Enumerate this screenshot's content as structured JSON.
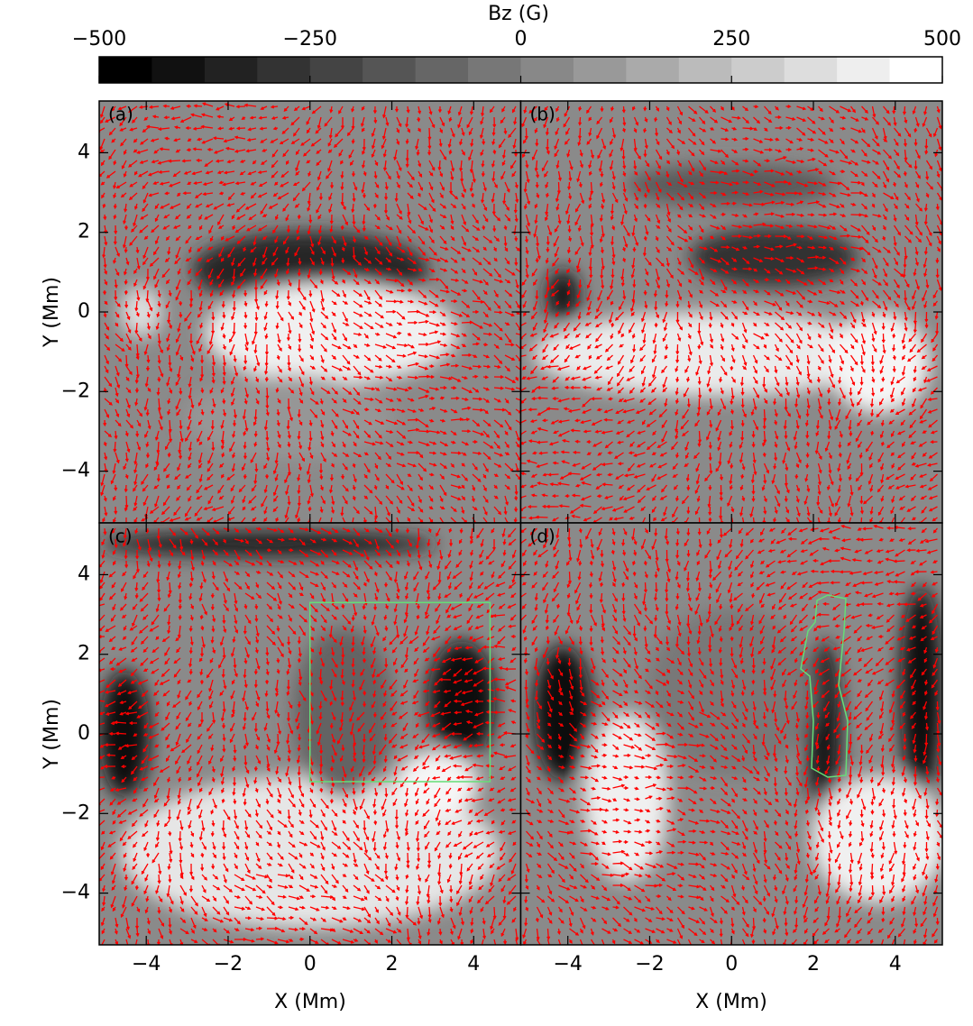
{
  "chart_data": {
    "type": "image",
    "colorbar": {
      "label": "Bz (G)",
      "lim": [
        -500,
        500
      ],
      "levels": 16,
      "ticks": [
        {
          "value": -500,
          "label": "−500"
        },
        {
          "value": -250,
          "label": "−250"
        },
        0,
        250,
        500
      ]
    },
    "xlabel": "X (Mm)",
    "ylabel": "Y (Mm)",
    "xlim": [
      -5.15,
      5.15
    ],
    "ylim": [
      -5.3,
      5.3
    ],
    "xticks": [
      {
        "value": -4,
        "label": "−4"
      },
      {
        "value": -2,
        "label": "−2"
      },
      0,
      2,
      4
    ],
    "yticks": [
      {
        "value": -4,
        "label": "−4"
      },
      {
        "value": -2,
        "label": "−2"
      },
      0,
      2,
      4
    ],
    "arrow_color": "#ff0000",
    "panels": [
      {
        "label": "(a)"
      },
      {
        "label": "(b)"
      },
      {
        "label": "(c)",
        "box": {
          "x": [
            0,
            4.4
          ],
          "y": [
            -1.2,
            3.3
          ],
          "color": "#66dd77"
        }
      },
      {
        "label": "(d)"
      }
    ]
  }
}
